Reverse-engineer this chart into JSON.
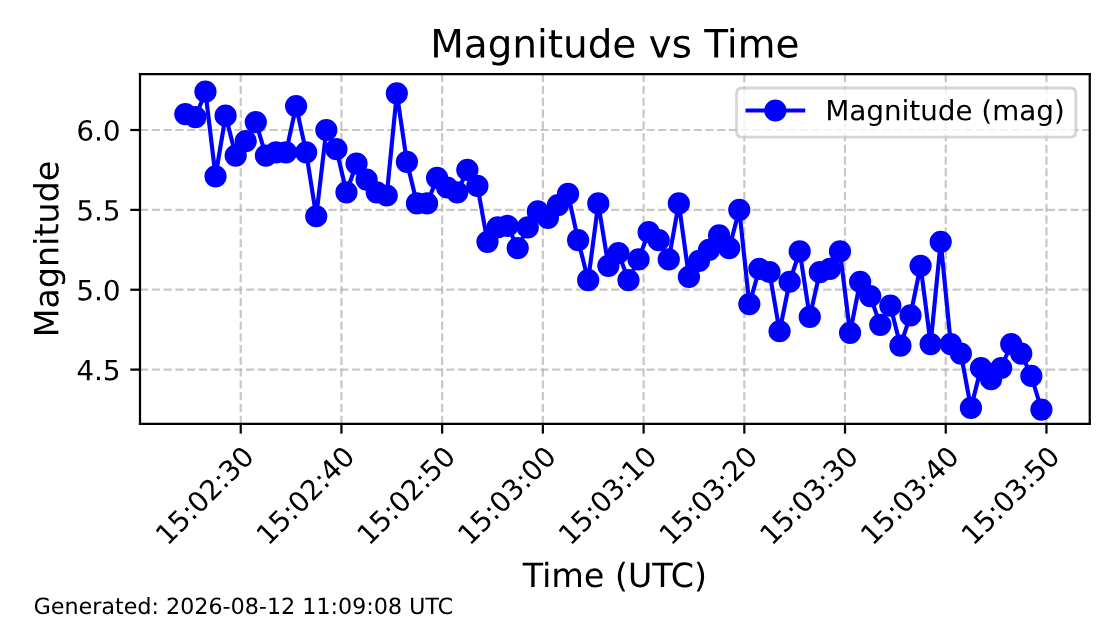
{
  "chart_data": {
    "type": "line",
    "title": "Magnitude vs Time",
    "xlabel": "Time (UTC)",
    "ylabel": "Magnitude",
    "annotations": [
      "Generated: 2026-08-12 11:09:08 UTC"
    ],
    "x": [
      15.040139,
      15.040417,
      15.040694,
      15.040972,
      15.04125,
      15.041528,
      15.041806,
      15.042083,
      15.042361,
      15.042639,
      15.042917,
      15.043194,
      15.043472,
      15.04375,
      15.044028,
      15.044306,
      15.044583,
      15.044861,
      15.045139,
      15.045417,
      15.045694,
      15.045972,
      15.04625,
      15.046528,
      15.046806,
      15.047083,
      15.047361,
      15.047639,
      15.047917,
      15.048194,
      15.048472,
      15.04875,
      15.049028,
      15.049306,
      15.049583,
      15.049861,
      15.050139,
      15.050417,
      15.050694,
      15.050972,
      15.05125,
      15.051528,
      15.051806,
      15.052083,
      15.052361,
      15.052639,
      15.052917,
      15.053194,
      15.053472,
      15.05375,
      15.054028,
      15.054306,
      15.054583,
      15.054861,
      15.055139,
      15.055417,
      15.055694,
      15.055972,
      15.05625,
      15.056528,
      15.056806,
      15.057083,
      15.057361,
      15.057639,
      15.057917,
      15.058194,
      15.058472,
      15.05875,
      15.059028,
      15.059306,
      15.059583,
      15.059861,
      15.060139,
      15.060417,
      15.060694,
      15.060972,
      15.06125,
      15.061528,
      15.061806,
      15.062083,
      15.062361,
      15.062639,
      15.062917,
      15.063194,
      15.063472,
      15.06375
    ],
    "series": [
      {
        "name": "Magnitude (mag)",
        "color": "#0000ff",
        "values": [
          6.1,
          6.08,
          6.24,
          5.71,
          6.09,
          5.84,
          5.93,
          6.05,
          5.84,
          5.86,
          5.86,
          6.15,
          5.86,
          5.46,
          6.0,
          5.88,
          5.61,
          5.79,
          5.69,
          5.61,
          5.59,
          6.23,
          5.8,
          5.54,
          5.54,
          5.7,
          5.64,
          5.61,
          5.75,
          5.65,
          5.3,
          5.39,
          5.4,
          5.26,
          5.39,
          5.49,
          5.45,
          5.53,
          5.6,
          5.31,
          5.06,
          5.54,
          5.15,
          5.23,
          5.06,
          5.19,
          5.36,
          5.31,
          5.19,
          5.54,
          5.08,
          5.18,
          5.25,
          5.34,
          5.26,
          5.5,
          4.91,
          5.13,
          5.11,
          4.74,
          5.05,
          5.24,
          4.83,
          5.11,
          5.13,
          5.24,
          4.73,
          5.05,
          4.96,
          4.78,
          4.9,
          4.65,
          4.84,
          5.15,
          4.66,
          5.3,
          4.66,
          4.6,
          4.26,
          4.51,
          4.44,
          4.51,
          4.66,
          4.6,
          4.46,
          4.25
        ]
      }
    ],
    "xlim": [
      15.038889,
      15.065083
    ],
    "xticks": [
      {
        "value": 15.041667,
        "label": "15:02:30"
      },
      {
        "value": 15.044444,
        "label": "15:02:40"
      },
      {
        "value": 15.047222,
        "label": "15:02:50"
      },
      {
        "value": 15.05,
        "label": "15:03:00"
      },
      {
        "value": 15.052778,
        "label": "15:03:10"
      },
      {
        "value": 15.055556,
        "label": "15:03:20"
      },
      {
        "value": 15.058333,
        "label": "15:03:30"
      },
      {
        "value": 15.061111,
        "label": "15:03:40"
      },
      {
        "value": 15.063889,
        "label": "15:03:50"
      }
    ],
    "ylim": [
      4.16,
      6.35
    ],
    "yticks": [
      4.5,
      {
        "value": 5,
        "label": "5.0"
      },
      5.5,
      {
        "value": 6,
        "label": "6.0"
      }
    ],
    "grid": true,
    "legend": "top right",
    "marker": "circle",
    "line_style": "solid"
  }
}
